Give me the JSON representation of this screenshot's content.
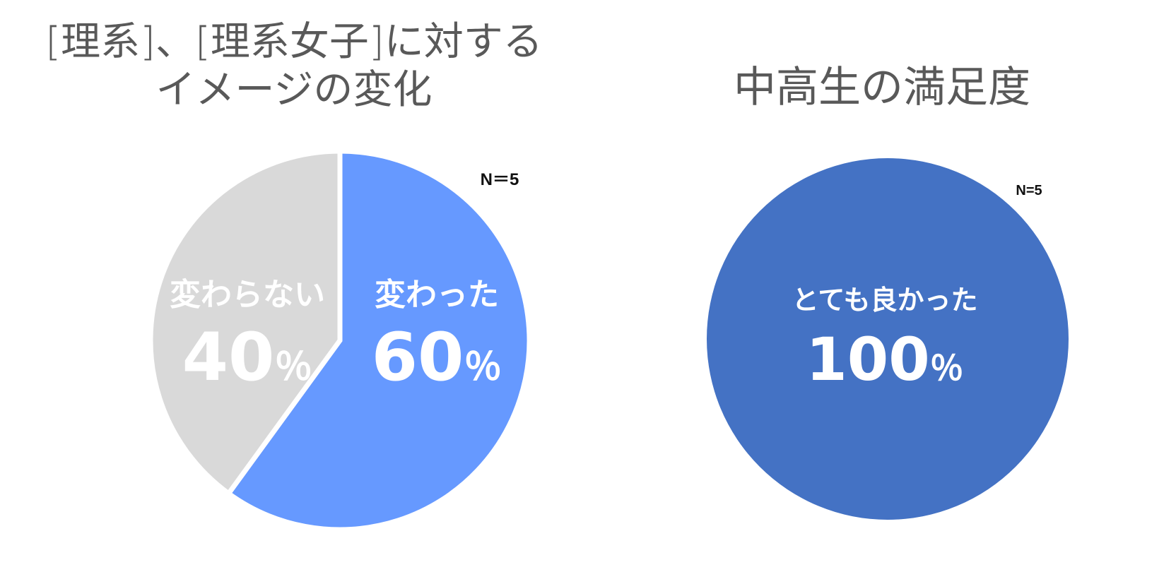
{
  "chart_data": [
    {
      "type": "pie",
      "title_lines": [
        "[理系]、[理系女子]に対する",
        "イメージの変化"
      ],
      "note": "N＝5",
      "slices": [
        {
          "label": "変わった",
          "value": 60,
          "display": "60",
          "unit": "％",
          "color": "#6699FF"
        },
        {
          "label": "変わらない",
          "value": 40,
          "display": "40",
          "unit": "％",
          "color": "#D9D9D9"
        }
      ],
      "start_angle_deg": 0,
      "direction": "clockwise"
    },
    {
      "type": "pie",
      "title_lines": [
        "中高生の満足度"
      ],
      "note": "N=5",
      "slices": [
        {
          "label": "とても良かった",
          "value": 100,
          "display": "100",
          "unit": "％",
          "color": "#4472C4"
        }
      ],
      "start_angle_deg": 0,
      "direction": "clockwise"
    }
  ]
}
